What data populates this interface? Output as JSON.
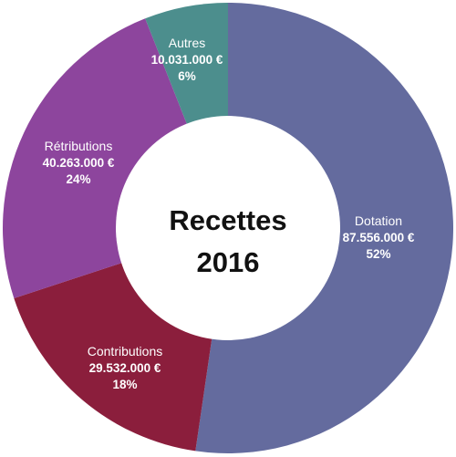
{
  "chart_data": {
    "type": "pie",
    "title_line1": "Recettes",
    "title_line2": "2016",
    "series": [
      {
        "label": "Dotation",
        "value_text": "87.556.000 €",
        "value": 87556000,
        "percent": "52%",
        "color": "#646b9e"
      },
      {
        "label": "Contributions",
        "value_text": "29.532.000 €",
        "value": 29532000,
        "percent": "18%",
        "color": "#8b1e3c"
      },
      {
        "label": "Rétributions",
        "value_text": "40.263.000 €",
        "value": 40263000,
        "percent": "24%",
        "color": "#8d459d"
      },
      {
        "label": "Autres",
        "value_text": "10.031.000 €",
        "value": 10031000,
        "percent": "6%",
        "color": "#4c8e8d"
      }
    ]
  }
}
